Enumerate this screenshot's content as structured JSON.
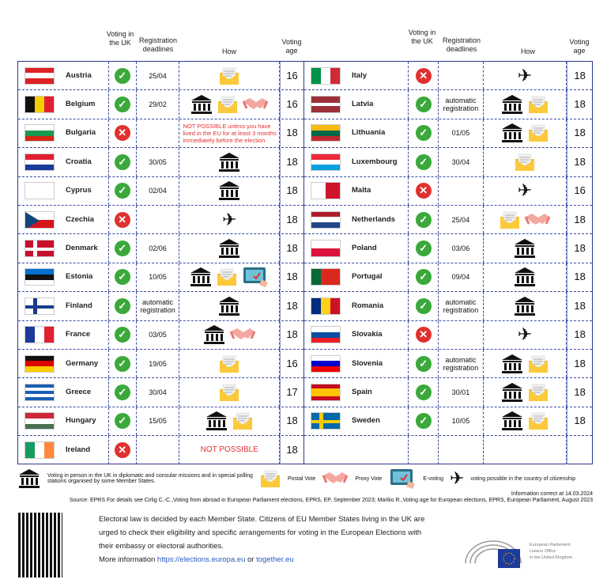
{
  "headers": {
    "uk": "Voting in the UK",
    "reg": "Registration deadlines",
    "how": "How",
    "age": "Voting age"
  },
  "colors": {
    "border": "#2b3a8c",
    "yes": "#3aa83a",
    "no": "#e03030",
    "note": "#e53030"
  },
  "icons": {
    "yes": "check-circle-icon",
    "no": "cross-circle-icon",
    "embassy": "embassy-building-icon",
    "postal": "envelope-icon",
    "proxy": "handshake-icon",
    "evote": "tablet-icon",
    "plane": "plane-icon"
  },
  "left": [
    {
      "country": "Austria",
      "flag": {
        "dir": "h",
        "c": [
          "#d22",
          "#fff",
          "#d22"
        ]
      },
      "uk": "yes",
      "reg": "25/04",
      "how": [
        "postal"
      ],
      "age": "16"
    },
    {
      "country": "Belgium",
      "flag": {
        "dir": "v",
        "c": [
          "#111",
          "#f5d000",
          "#e02030"
        ]
      },
      "uk": "yes",
      "reg": "29/02",
      "how": [
        "embassy",
        "postal",
        "proxy"
      ],
      "age": "16"
    },
    {
      "country": "Bulgaria",
      "flag": {
        "dir": "h",
        "c": [
          "#fff",
          "#1a9a50",
          "#d62612"
        ]
      },
      "uk": "no",
      "reg": "",
      "note": "NOT POSSIBLE unless you have lived in the EU for at least 3 months immediately before the election",
      "how": [],
      "age": "18"
    },
    {
      "country": "Croatia",
      "flag": {
        "dir": "h",
        "c": [
          "#e02030",
          "#fff",
          "#1a3a9a"
        ]
      },
      "uk": "yes",
      "reg": "30/05",
      "how": [
        "embassy"
      ],
      "age": "18"
    },
    {
      "country": "Cyprus",
      "flag": {
        "dir": "h",
        "c": [
          "#fff",
          "#fff"
        ]
      },
      "uk": "yes",
      "reg": "02/04",
      "how": [
        "embassy"
      ],
      "age": "18"
    },
    {
      "country": "Czechia",
      "flag": {
        "dir": "h",
        "c": [
          "#fff",
          "#d7141a"
        ],
        "tri": "#11457e"
      },
      "uk": "no",
      "reg": "",
      "how": [
        "plane"
      ],
      "age": "18"
    },
    {
      "country": "Denmark",
      "flag": {
        "dir": "h",
        "c": [
          "#c8102e"
        ],
        "cross": "#fff"
      },
      "uk": "yes",
      "reg": "02/06",
      "how": [
        "embassy"
      ],
      "age": "18"
    },
    {
      "country": "Estonia",
      "flag": {
        "dir": "h",
        "c": [
          "#0072ce",
          "#111",
          "#fff"
        ]
      },
      "uk": "yes",
      "reg": "10/05",
      "how": [
        "embassy",
        "postal",
        "evote"
      ],
      "age": "18"
    },
    {
      "country": "Finland",
      "flag": {
        "dir": "h",
        "c": [
          "#fff"
        ],
        "cross": "#1a3a8a"
      },
      "uk": "yes",
      "reg": "automatic registration",
      "how": [
        "embassy"
      ],
      "age": "18"
    },
    {
      "country": "France",
      "flag": {
        "dir": "v",
        "c": [
          "#1a3a9a",
          "#fff",
          "#e02030"
        ]
      },
      "uk": "yes",
      "reg": "03/05",
      "how": [
        "embassy",
        "proxy"
      ],
      "age": "18"
    },
    {
      "country": "Germany",
      "flag": {
        "dir": "h",
        "c": [
          "#111",
          "#d00",
          "#fc0"
        ]
      },
      "uk": "yes",
      "reg": "19/05",
      "how": [
        "postal"
      ],
      "age": "16"
    },
    {
      "country": "Greece",
      "flag": {
        "dir": "h",
        "c": [
          "#1a5fb4",
          "#fff",
          "#1a5fb4",
          "#fff",
          "#1a5fb4"
        ]
      },
      "uk": "yes",
      "reg": "30/04",
      "how": [
        "postal"
      ],
      "age": "17"
    },
    {
      "country": "Hungary",
      "flag": {
        "dir": "h",
        "c": [
          "#ce2939",
          "#fff",
          "#477050"
        ]
      },
      "uk": "yes",
      "reg": "15/05",
      "how": [
        "embassy",
        "postal"
      ],
      "age": "18"
    },
    {
      "country": "Ireland",
      "flag": {
        "dir": "v",
        "c": [
          "#169b62",
          "#fff",
          "#ff883e"
        ]
      },
      "uk": "no",
      "reg": "",
      "np": "NOT POSSIBLE",
      "how": [],
      "age": "18"
    }
  ],
  "right": [
    {
      "country": "Italy",
      "flag": {
        "dir": "v",
        "c": [
          "#009246",
          "#fff",
          "#ce2b37"
        ]
      },
      "uk": "no",
      "reg": "",
      "how": [
        "plane"
      ],
      "age": "18"
    },
    {
      "country": "Latvia",
      "flag": {
        "dir": "h",
        "c": [
          "#9e3039",
          "#9e3039",
          "#fff",
          "#9e3039",
          "#9e3039"
        ]
      },
      "uk": "yes",
      "reg": "automatic registration",
      "how": [
        "embassy",
        "postal"
      ],
      "age": "18"
    },
    {
      "country": "Lithuania",
      "flag": {
        "dir": "h",
        "c": [
          "#fdb913",
          "#006a44",
          "#c1272d"
        ]
      },
      "uk": "yes",
      "reg": "01/05",
      "how": [
        "embassy",
        "postal"
      ],
      "age": "18"
    },
    {
      "country": "Luxembourg",
      "flag": {
        "dir": "h",
        "c": [
          "#ed2939",
          "#fff",
          "#00a1de"
        ]
      },
      "uk": "yes",
      "reg": "30/04",
      "how": [
        "postal"
      ],
      "age": "18"
    },
    {
      "country": "Malta",
      "flag": {
        "dir": "v",
        "c": [
          "#fff",
          "#cf142b"
        ]
      },
      "uk": "no",
      "reg": "",
      "how": [
        "plane"
      ],
      "age": "16"
    },
    {
      "country": "Netherlands",
      "flag": {
        "dir": "h",
        "c": [
          "#ae1c28",
          "#fff",
          "#21468b"
        ]
      },
      "uk": "yes",
      "reg": "25/04",
      "how": [
        "postal",
        "proxy"
      ],
      "age": "18"
    },
    {
      "country": "Poland",
      "flag": {
        "dir": "h",
        "c": [
          "#fff",
          "#dc143c"
        ]
      },
      "uk": "yes",
      "reg": "03/06",
      "how": [
        "embassy"
      ],
      "age": "18"
    },
    {
      "country": "Portugal",
      "flag": {
        "dir": "v",
        "c": [
          "#046a38",
          "#da291c",
          "#da291c"
        ]
      },
      "uk": "yes",
      "reg": "09/04",
      "how": [
        "embassy"
      ],
      "age": "18"
    },
    {
      "country": "Romania",
      "flag": {
        "dir": "v",
        "c": [
          "#002b7f",
          "#fcd116",
          "#ce1126"
        ]
      },
      "uk": "yes",
      "reg": "automatic registration",
      "how": [
        "embassy"
      ],
      "age": "18"
    },
    {
      "country": "Slovakia",
      "flag": {
        "dir": "h",
        "c": [
          "#fff",
          "#0b4ea2",
          "#ee1c25"
        ]
      },
      "uk": "no",
      "reg": "",
      "how": [
        "plane"
      ],
      "age": "18"
    },
    {
      "country": "Slovenia",
      "flag": {
        "dir": "h",
        "c": [
          "#fff",
          "#0000cc",
          "#e00"
        ]
      },
      "uk": "yes",
      "reg": "automatic registration",
      "how": [
        "embassy",
        "postal"
      ],
      "age": "18"
    },
    {
      "country": "Spain",
      "flag": {
        "dir": "h",
        "c": [
          "#c60b1e",
          "#ffc400",
          "#ffc400",
          "#c60b1e"
        ]
      },
      "uk": "yes",
      "reg": "30/01",
      "how": [
        "embassy",
        "postal"
      ],
      "age": "18"
    },
    {
      "country": "Sweden",
      "flag": {
        "dir": "h",
        "c": [
          "#006aa7"
        ],
        "cross": "#fecc00"
      },
      "uk": "yes",
      "reg": "10/05",
      "how": [
        "embassy",
        "postal"
      ],
      "age": "18"
    }
  ],
  "legend": {
    "embassy": "Voting in person in the UK in diplomatic and consular missions and in special polling stations organised by some Member States.",
    "postal": "Postal Vote",
    "proxy": "Proxy Vote",
    "evote": "E-voting",
    "plane": "voting possible in the country of citizenship"
  },
  "info": "Information correct at 14.03.2024",
  "source": "Source: EPRS For details see Cirlig C.-C.,Voting from abroad in European Parliament elections, EPRS, EP, September 2023; Mańko R.,Voting age for European elections, EPRS, European Parliament, August 2023",
  "footer": {
    "text": "Electoral law is decided by each Member State. Citizens of EU Member States living in the UK are urged to check their eligibility and specific arrangements for voting in the European Elections with their embassy or electoral authorities.",
    "more": "More information",
    "link1": "https://elections.europa.eu",
    "or": "or",
    "link2": "together.eu"
  },
  "logo": {
    "l1": "European Parliament",
    "l2": "Liaison Office",
    "l3": "in the United Kingdom"
  }
}
